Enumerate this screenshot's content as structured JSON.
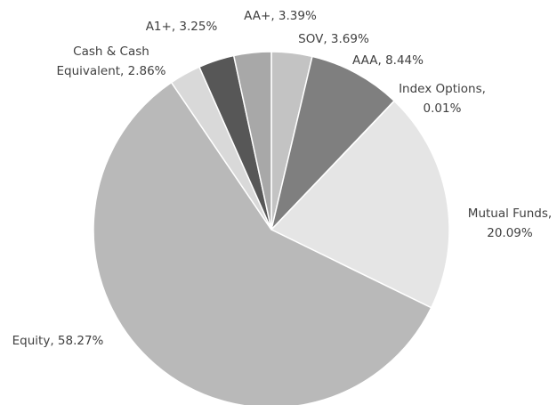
{
  "chart_data": {
    "type": "pie",
    "values": [
      3.69,
      8.44,
      0.01,
      20.09,
      58.27,
      2.86,
      3.25,
      3.39
    ],
    "value_labels": [
      [
        "SOV, 3.69%"
      ],
      [
        "AAA, 8.44%"
      ],
      [
        "Index Options,",
        "0.01%"
      ],
      [
        "Mutual Funds,",
        "20.09%"
      ],
      [
        "Equity, 58.27%"
      ],
      [
        "Cash & Cash",
        "Equivalent, 2.86%"
      ],
      [
        "A1+, 3.25%"
      ],
      [
        "AA+, 3.39%"
      ]
    ],
    "colors": [
      "#c3c3c3",
      "#7f7f7f",
      "#9a9a9a",
      "#e5e5e5",
      "#b9b9b9",
      "#d9d9d9",
      "#575757",
      "#a8a8a8"
    ]
  }
}
